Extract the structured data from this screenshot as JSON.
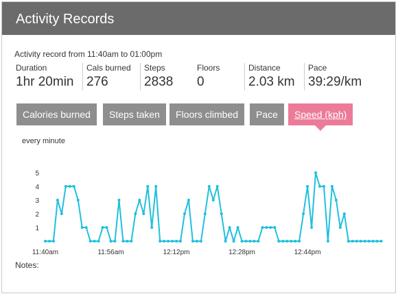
{
  "header": {
    "title": "Activity Records"
  },
  "record": {
    "subtitle": "Activity record from 11:40am to 01:00pm"
  },
  "stats": [
    {
      "label": "Duration",
      "value": "1hr 20min"
    },
    {
      "label": "Cals burned",
      "value": "276"
    },
    {
      "label": "Steps",
      "value": "2838"
    },
    {
      "label": "Floors",
      "value": "0"
    },
    {
      "label": "Distance",
      "value": "2.03 km"
    },
    {
      "label": "Pace",
      "value": "39:29/km"
    }
  ],
  "tabs": [
    {
      "label": "Calories burned",
      "active": false
    },
    {
      "label": "Steps taken",
      "active": false
    },
    {
      "label": "Floors climbed",
      "active": false
    },
    {
      "label": "Pace",
      "active": false
    },
    {
      "label": "Speed (kph)",
      "active": true
    }
  ],
  "chart": {
    "interval_label": "every minute"
  },
  "notes": {
    "label": "Notes:"
  },
  "colors": {
    "header_bg": "#6b6b6b",
    "tab_bg": "#8e8e8e",
    "tab_active_bg": "#ec7b99",
    "series": "#1ec0dc"
  },
  "chart_data": {
    "type": "line",
    "title": "",
    "xlabel": "",
    "ylabel": "",
    "x_start": "11:40am",
    "x_step_minutes": 1,
    "xticks": [
      "11:40am",
      "11:56am",
      "12:12pm",
      "12:28pm",
      "12:44pm"
    ],
    "yticks": [
      1,
      2,
      3,
      4,
      5
    ],
    "ylim": [
      0,
      5
    ],
    "grid": false,
    "series": [
      {
        "values": [
          0,
          0,
          0,
          3,
          2,
          4,
          4,
          4,
          3,
          1,
          1,
          0,
          0,
          0,
          1,
          1,
          0,
          0,
          3,
          0,
          0,
          0,
          2,
          3,
          2,
          4,
          1,
          4,
          0,
          0,
          0,
          0,
          0,
          0,
          2,
          3,
          0,
          0,
          0,
          2,
          4,
          3,
          4,
          2,
          0,
          1,
          0,
          1,
          0,
          0,
          0,
          0,
          0,
          1,
          1,
          1,
          1,
          0,
          0,
          0,
          0,
          0,
          0,
          2,
          4,
          1,
          5,
          4,
          4,
          0,
          4,
          3,
          1,
          2,
          0,
          0,
          0,
          0,
          0,
          0,
          0,
          0,
          0
        ]
      }
    ]
  }
}
